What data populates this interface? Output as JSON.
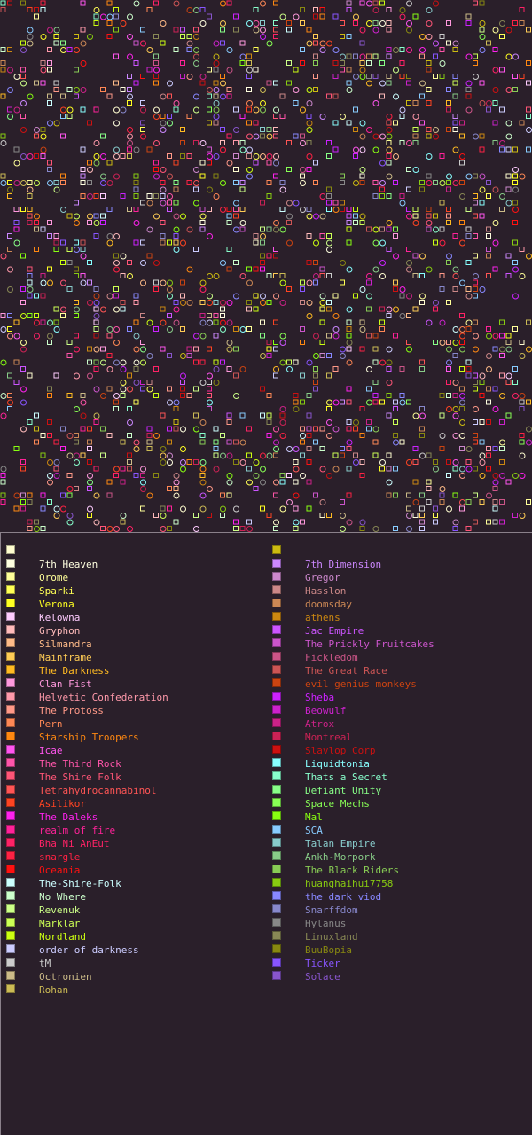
{
  "legend": {
    "left": [
      {
        "name": "",
        "color": "#fffdd0"
      },
      {
        "name": "7th Heaven",
        "color": "#ffffe0"
      },
      {
        "name": "Orome",
        "color": "#ffff99"
      },
      {
        "name": "Sparki",
        "color": "#ffff55"
      },
      {
        "name": "Verona",
        "color": "#ffff22"
      },
      {
        "name": "Kelowna",
        "color": "#ffccff"
      },
      {
        "name": "Gryphon",
        "color": "#ffbbbb"
      },
      {
        "name": "Silmandra",
        "color": "#ffbb88"
      },
      {
        "name": "Mainframe",
        "color": "#ffcc55"
      },
      {
        "name": "The Darkness",
        "color": "#ffbb22"
      },
      {
        "name": "Clan Fist",
        "color": "#ff99dd"
      },
      {
        "name": "Helvetic Confederation",
        "color": "#ff99aa"
      },
      {
        "name": "The Protoss",
        "color": "#ff9988"
      },
      {
        "name": "Pern",
        "color": "#ff8855"
      },
      {
        "name": "Starship Troopers",
        "color": "#ff8811"
      },
      {
        "name": "Icae",
        "color": "#ff55ee"
      },
      {
        "name": "The Third Rock",
        "color": "#ff55aa"
      },
      {
        "name": "The Shire Folk",
        "color": "#ff5577"
      },
      {
        "name": "Tetrahydrocannabinol",
        "color": "#ff5555"
      },
      {
        "name": "Asilikor",
        "color": "#ff4422"
      },
      {
        "name": "The Daleks",
        "color": "#ff22ee"
      },
      {
        "name": "realm of fire",
        "color": "#ff2299"
      },
      {
        "name": "Bha Ni AnEut",
        "color": "#ff2266"
      },
      {
        "name": "snargle",
        "color": "#ff2244"
      },
      {
        "name": "Oceania",
        "color": "#ff1111"
      },
      {
        "name": "The-Shire-Folk",
        "color": "#ccffff"
      },
      {
        "name": "No Where",
        "color": "#ccffcc"
      },
      {
        "name": "Revenuk",
        "color": "#ccff88"
      },
      {
        "name": "Marklar",
        "color": "#ccff55"
      },
      {
        "name": "Nordland",
        "color": "#ccff11"
      },
      {
        "name": "order of darkness",
        "color": "#ccccff"
      },
      {
        "name": "tM",
        "color": "#cccccc"
      },
      {
        "name": "Octronien",
        "color": "#ccbb88"
      },
      {
        "name": "Rohan",
        "color": "#ccbb55"
      }
    ],
    "right": [
      {
        "name": "",
        "color": "#ccbb11"
      },
      {
        "name": "7th Dimension",
        "color": "#cc88ff"
      },
      {
        "name": "Gregor",
        "color": "#cc88cc"
      },
      {
        "name": "Hasslon",
        "color": "#cc8888"
      },
      {
        "name": "doomsday",
        "color": "#cc8855"
      },
      {
        "name": "athens",
        "color": "#cc8811"
      },
      {
        "name": "Jac Empire",
        "color": "#cc55ff"
      },
      {
        "name": "The Prickly Fruitcakes",
        "color": "#cc55cc"
      },
      {
        "name": "Fickledom",
        "color": "#cc5588"
      },
      {
        "name": "The Great Race",
        "color": "#cc5555"
      },
      {
        "name": "evil genius monkeys",
        "color": "#cc4411"
      },
      {
        "name": "Sheba",
        "color": "#cc22ff"
      },
      {
        "name": "Beowulf",
        "color": "#cc22cc"
      },
      {
        "name": "Atrox",
        "color": "#cc2288"
      },
      {
        "name": "Montreal",
        "color": "#cc2255"
      },
      {
        "name": "Slavlop Corp",
        "color": "#cc1111"
      },
      {
        "name": "Liquidtonia",
        "color": "#88ffff"
      },
      {
        "name": "Thats a Secret",
        "color": "#88ffcc"
      },
      {
        "name": "Defiant Unity",
        "color": "#88ff88"
      },
      {
        "name": "Space Mechs",
        "color": "#88ff55"
      },
      {
        "name": "Mal",
        "color": "#88ff11"
      },
      {
        "name": "SCA",
        "color": "#88ccff"
      },
      {
        "name": "Talan Empire",
        "color": "#88cccc"
      },
      {
        "name": "Ankh-Morpork",
        "color": "#88cc88"
      },
      {
        "name": "The Black Riders",
        "color": "#88cc55"
      },
      {
        "name": "huanghaihui7758",
        "color": "#88cc11"
      },
      {
        "name": "the dark viod",
        "color": "#8888ff"
      },
      {
        "name": "Snarffdom",
        "color": "#8888cc"
      },
      {
        "name": "Hylanus",
        "color": "#888888"
      },
      {
        "name": "Linuxland",
        "color": "#888855"
      },
      {
        "name": "BuuBopia",
        "color": "#888811"
      },
      {
        "name": "Ticker",
        "color": "#8855ff"
      },
      {
        "name": "Solace",
        "color": "#8855cc"
      }
    ]
  }
}
